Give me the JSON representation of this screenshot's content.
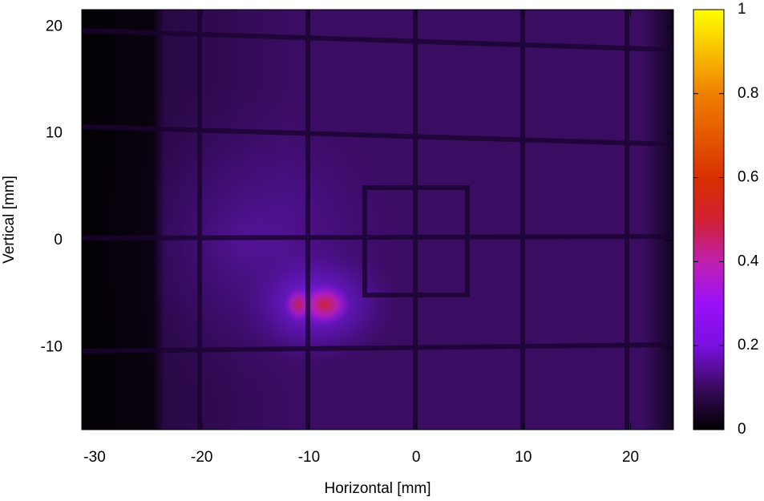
{
  "chart_data": {
    "type": "heatmap",
    "xlabel": "Horizontal [mm]",
    "ylabel": "Vertical [mm]",
    "xlim": [
      -31.2,
      24
    ],
    "ylim": [
      -17.7,
      21.6
    ],
    "xticks": [
      -30,
      -20,
      -10,
      0,
      10,
      20
    ],
    "yticks": [
      -10,
      0,
      10,
      20
    ],
    "colorbar": {
      "lim": [
        0,
        1
      ],
      "ticks": [
        0,
        0.2,
        0.4,
        0.6,
        0.8,
        1
      ]
    }
  }
}
